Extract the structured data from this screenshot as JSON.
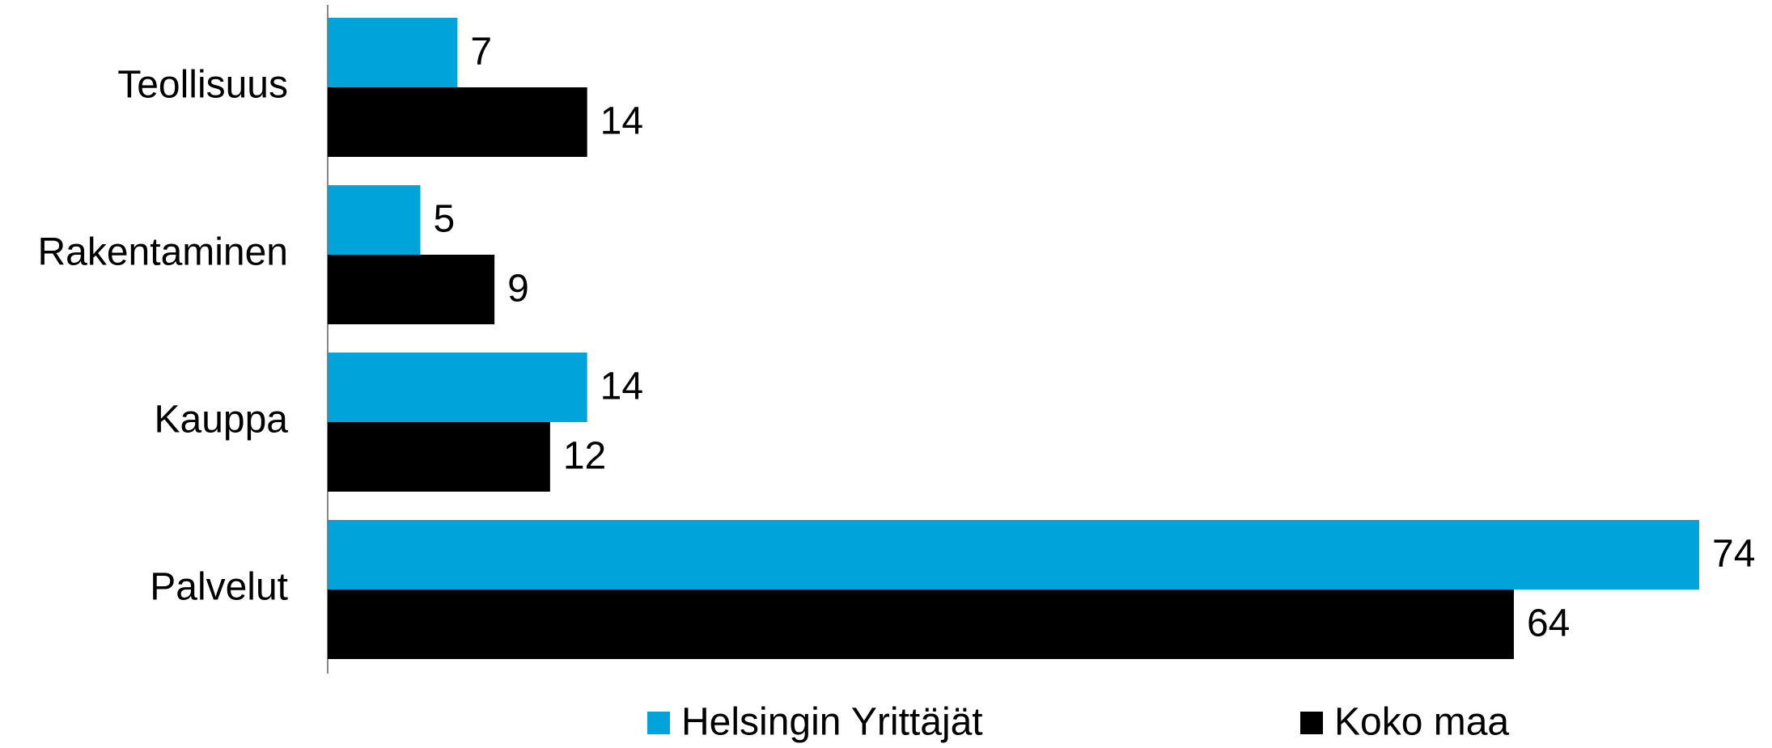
{
  "chart_data": {
    "type": "bar",
    "orientation": "horizontal",
    "categories": [
      "Teollisuus",
      "Rakentaminen",
      "Kauppa",
      "Palvelut"
    ],
    "series": [
      {
        "name": "Helsingin Yrittäjät",
        "color": "#00a3da",
        "values": [
          7,
          5,
          14,
          74
        ]
      },
      {
        "name": "Koko maa",
        "color": "#000000",
        "values": [
          14,
          9,
          12,
          64
        ]
      }
    ],
    "legend": "bottom",
    "data_labels": true
  }
}
